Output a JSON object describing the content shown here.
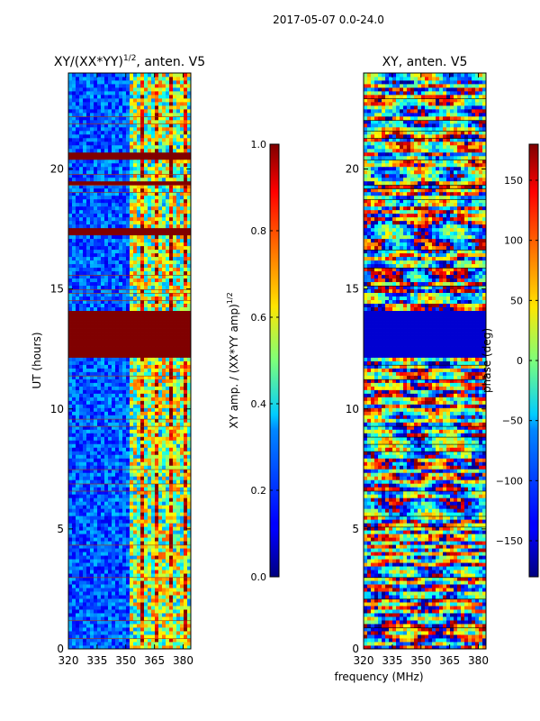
{
  "suptitle": "2017-05-07 0.0-24.0",
  "chart_data": [
    {
      "type": "heatmap",
      "title": "XY/(XX*YY)",
      "title_superscript": "1/2",
      "title_suffix": ", anten. V5",
      "xlabel": "",
      "ylabel": "UT (hours)",
      "xlim": [
        320,
        384
      ],
      "ylim": [
        0,
        24
      ],
      "xticks": [
        320,
        335,
        350,
        365,
        380
      ],
      "yticks": [
        0,
        5,
        10,
        15,
        20
      ],
      "saturated_time_bands_hours": [
        [
          12.1,
          14.1
        ],
        [
          17.2,
          17.5
        ],
        [
          20.4,
          20.65
        ],
        [
          19.3,
          19.45
        ],
        [
          18.25,
          18.35
        ],
        [
          16.9,
          17.0
        ]
      ],
      "bright_channel_start_mhz": 352,
      "colorbar": {
        "label": "XY amp. / (XX*YY amp)",
        "label_superscript": "1/2",
        "range": [
          0.0,
          1.0
        ],
        "ticks": [
          "0.0",
          "0.2",
          "0.4",
          "0.6",
          "0.8",
          "1.0"
        ]
      }
    },
    {
      "type": "heatmap",
      "title": "XY, anten. V5",
      "xlabel": "frequency (MHz)",
      "ylabel": "",
      "xlim": [
        320,
        384
      ],
      "ylim": [
        0,
        24
      ],
      "xticks": [
        320,
        335,
        350,
        365,
        380
      ],
      "yticks": [
        0,
        5,
        10,
        15,
        20
      ],
      "constant_phase_band_hours": [
        12.1,
        14.1
      ],
      "colorbar": {
        "label": "phase (deg)",
        "range": [
          -180,
          180
        ],
        "ticks": [
          "-150",
          "-100",
          "-50",
          "0",
          "50",
          "100",
          "150"
        ]
      }
    }
  ]
}
